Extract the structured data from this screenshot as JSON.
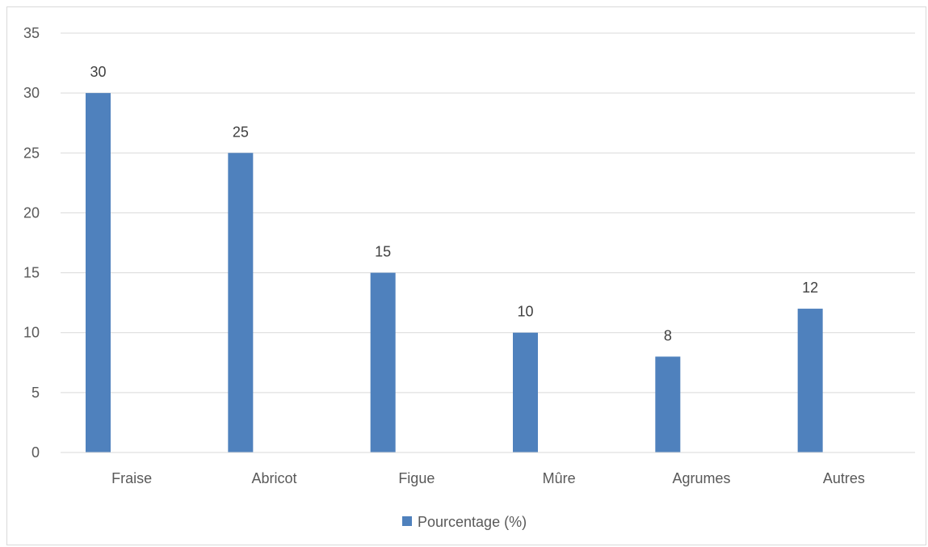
{
  "chart_data": {
    "type": "bar",
    "categories": [
      "Fraise",
      "Abricot",
      "Figue",
      "Mûre",
      "Agrumes",
      "Autres"
    ],
    "series": [
      {
        "name": "Pourcentage (%)",
        "values": [
          30,
          25,
          15,
          10,
          8,
          12
        ],
        "color": "#4f81bd"
      }
    ],
    "ylim": [
      0,
      35
    ],
    "yticks": [
      0,
      5,
      10,
      15,
      20,
      25,
      30,
      35
    ],
    "grid": true,
    "data_labels": true,
    "legend": "bottom",
    "title": "",
    "xlabel": "",
    "ylabel": ""
  }
}
